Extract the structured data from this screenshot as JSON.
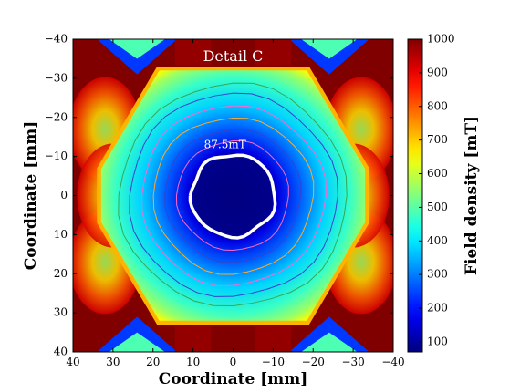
{
  "chart_data": {
    "type": "heatmap",
    "title": "",
    "xlabel": "Coordinate [mm]",
    "ylabel": "Coordinate [mm]",
    "colorbar_label": "Field density  [mT]",
    "xlim": [
      40,
      -40
    ],
    "ylim": [
      -40,
      40
    ],
    "x_ticks": [
      "40",
      "30",
      "20",
      "10",
      "0",
      "−10",
      "−20",
      "−30",
      "−40"
    ],
    "y_ticks": [
      "−40",
      "−30",
      "−20",
      "−10",
      "0",
      "10",
      "20",
      "30",
      "40"
    ],
    "colorbar_range": [
      70,
      1000
    ],
    "colorbar_ticks": [
      "100",
      "200",
      "300",
      "400",
      "500",
      "600",
      "700",
      "800",
      "900",
      "1000"
    ],
    "colormap": "jet",
    "annotations": [
      {
        "text": "87.5mT",
        "x": 2,
        "y": -13
      },
      {
        "text": "Detail C",
        "x": 0,
        "y": -35.5
      }
    ],
    "highlight_contour": {
      "label": "87.5mT",
      "radius_mm": 10.5,
      "color": "#ffffff"
    },
    "centre_field_mT": 70,
    "edge_field_mT": 1000
  }
}
